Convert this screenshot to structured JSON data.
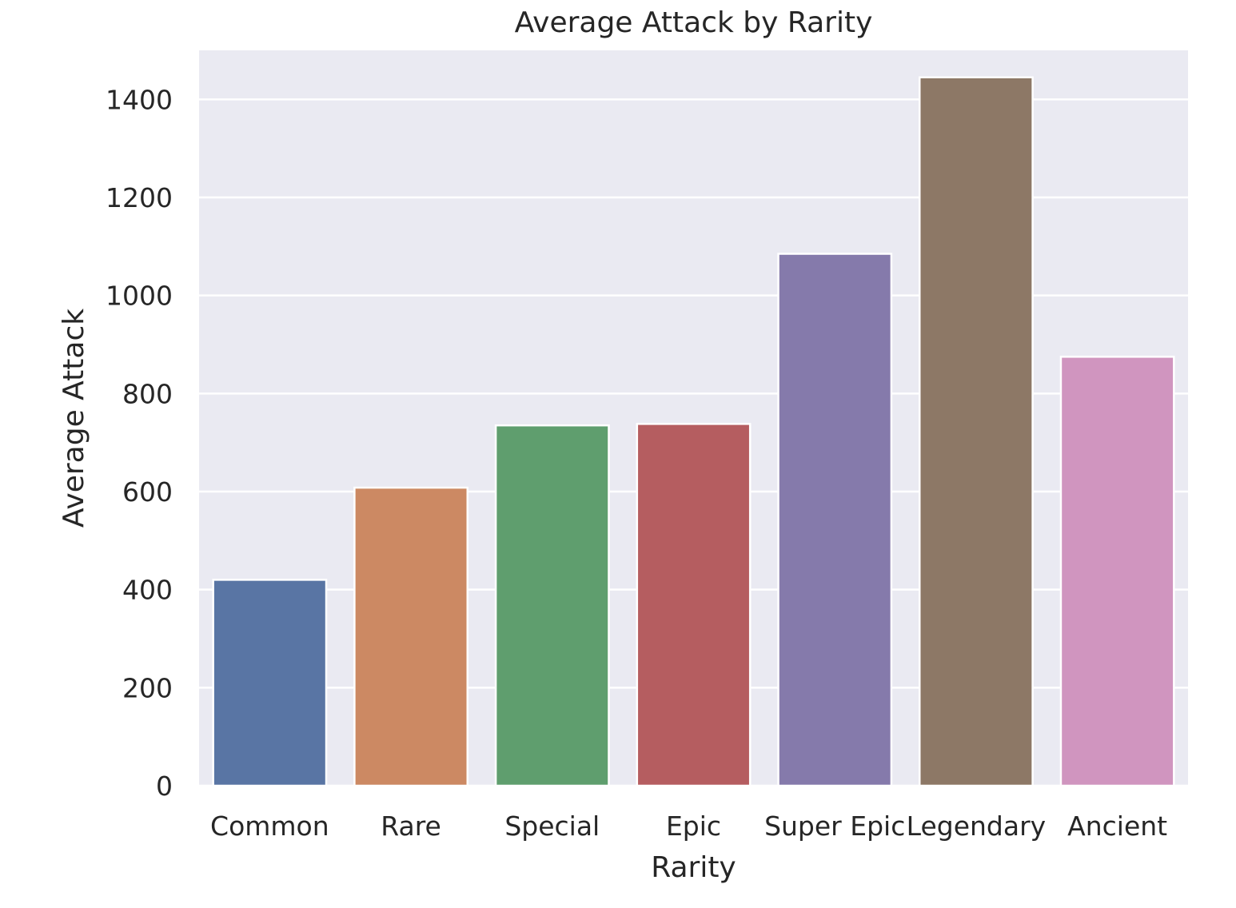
{
  "chart_data": {
    "type": "bar",
    "title": "Average Attack by Rarity",
    "xlabel": "Rarity",
    "ylabel": "Average Attack",
    "categories": [
      "Common",
      "Rare",
      "Special",
      "Epic",
      "Super Epic",
      "Legendary",
      "Ancient"
    ],
    "values": [
      420,
      608,
      735,
      738,
      1085,
      1445,
      875
    ],
    "colors": [
      "#5975a4",
      "#cc8963",
      "#5f9e6e",
      "#b55d60",
      "#857aab",
      "#8d7866",
      "#d095bf"
    ],
    "ylim": [
      0,
      1500
    ],
    "yticks": [
      0,
      200,
      400,
      600,
      800,
      1000,
      1200,
      1400
    ],
    "ytick_labels": [
      "0",
      "200",
      "400",
      "600",
      "800",
      "1000",
      "1200",
      "1400"
    ],
    "grid": true,
    "background_color": "#eaeaf2",
    "grid_color": "#ffffff"
  }
}
